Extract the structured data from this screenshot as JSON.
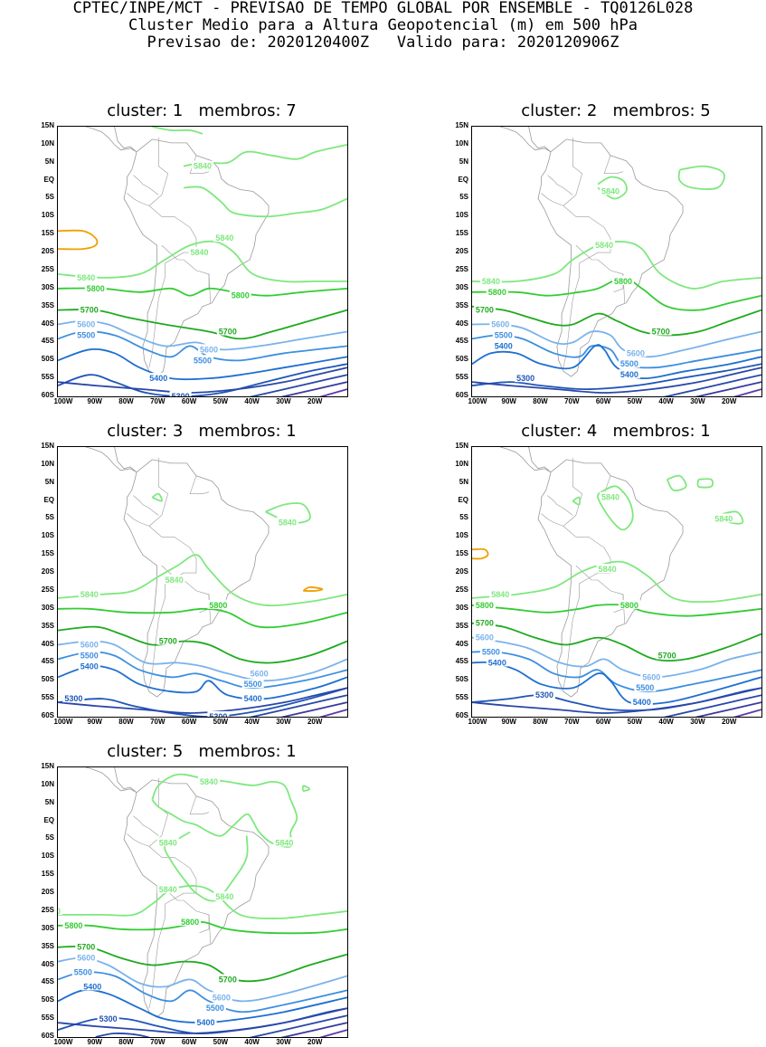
{
  "header": {
    "line1": "CPTEC/INPE/MCT - PREVISAO DE TEMPO GLOBAL POR ENSEMBLE - TQ0126L028",
    "line2": "Cluster Medio para a Altura Geopotencial (m) em 500 hPa",
    "line3": "Previsao de: 2020120400Z   Valido para: 2020120906Z"
  },
  "axes": {
    "lat_ticks": [
      "15N",
      "10N",
      "5N",
      "EQ",
      "5S",
      "10S",
      "15S",
      "20S",
      "25S",
      "30S",
      "35S",
      "40S",
      "45S",
      "50S",
      "55S",
      "60S"
    ],
    "lon_ticks": [
      "100W",
      "90W",
      "80W",
      "70W",
      "60W",
      "50W",
      "40W",
      "30W",
      "20W"
    ]
  },
  "colors": {
    "c5840": "#7ee87e",
    "c5800": "#33cc33",
    "c5700": "#1faa1f",
    "c5600": "#7ab2ec",
    "c5500": "#3d8fe0",
    "c5400": "#1e6fd0",
    "c5300": "#1f55b8",
    "deep1": "#2a47a8",
    "deep2": "#3a3aa0",
    "deep3": "#5a3aa8",
    "warm": "#f0a000",
    "coast": "#9a9a9a"
  },
  "panels": [
    {
      "title": "cluster: 1   membros: 7",
      "labels": [
        {
          "text": "5840",
          "lon": -56,
          "lat": 4
        },
        {
          "text": "5840",
          "lon": -49,
          "lat": -16
        },
        {
          "text": "5840",
          "lon": -57,
          "lat": -20
        },
        {
          "text": "5840",
          "lon": -93,
          "lat": -27
        },
        {
          "text": "5800",
          "lon": -90,
          "lat": -30
        },
        {
          "text": "5800",
          "lon": -44,
          "lat": -32
        },
        {
          "text": "5700",
          "lon": -92,
          "lat": -36
        },
        {
          "text": "5700",
          "lon": -48,
          "lat": -42
        },
        {
          "text": "5600",
          "lon": -93,
          "lat": -40
        },
        {
          "text": "5600",
          "lon": -54,
          "lat": -47
        },
        {
          "text": "5500",
          "lon": -93,
          "lat": -43
        },
        {
          "text": "5500",
          "lon": -56,
          "lat": -50
        },
        {
          "text": "5400",
          "lon": -70,
          "lat": -55
        },
        {
          "text": "5300",
          "lon": -63,
          "lat": -60
        }
      ]
    },
    {
      "title": "cluster: 2   membros: 5",
      "labels": [
        {
          "text": "5840",
          "lon": -58,
          "lat": -3
        },
        {
          "text": "5840",
          "lon": -60,
          "lat": -18
        },
        {
          "text": "5840",
          "lon": -96,
          "lat": -28
        },
        {
          "text": "5800",
          "lon": -94,
          "lat": -31
        },
        {
          "text": "5800",
          "lon": -54,
          "lat": -28
        },
        {
          "text": "5700",
          "lon": -98,
          "lat": -36
        },
        {
          "text": "5700",
          "lon": -42,
          "lat": -42
        },
        {
          "text": "5600",
          "lon": -93,
          "lat": -40
        },
        {
          "text": "5600",
          "lon": -50,
          "lat": -48
        },
        {
          "text": "5500",
          "lon": -92,
          "lat": -43
        },
        {
          "text": "5500",
          "lon": -52,
          "lat": -51
        },
        {
          "text": "5400",
          "lon": -92,
          "lat": -46
        },
        {
          "text": "5400",
          "lon": -52,
          "lat": -54
        },
        {
          "text": "5300",
          "lon": -85,
          "lat": -55
        }
      ]
    },
    {
      "title": "cluster: 3   membros: 1",
      "labels": [
        {
          "text": "5840",
          "lon": -29,
          "lat": -6
        },
        {
          "text": "5840",
          "lon": -65,
          "lat": -22
        },
        {
          "text": "5840",
          "lon": -92,
          "lat": -26
        },
        {
          "text": "5800",
          "lon": -51,
          "lat": -29
        },
        {
          "text": "5700",
          "lon": -67,
          "lat": -39
        },
        {
          "text": "5600",
          "lon": -92,
          "lat": -40
        },
        {
          "text": "5600",
          "lon": -38,
          "lat": -48
        },
        {
          "text": "5500",
          "lon": -92,
          "lat": -43
        },
        {
          "text": "5500",
          "lon": -40,
          "lat": -51
        },
        {
          "text": "5400",
          "lon": -92,
          "lat": -46
        },
        {
          "text": "5400",
          "lon": -40,
          "lat": -55
        },
        {
          "text": "5300",
          "lon": -97,
          "lat": -55
        },
        {
          "text": "5300",
          "lon": -51,
          "lat": -60
        }
      ]
    },
    {
      "title": "cluster: 4   membros: 1",
      "labels": [
        {
          "text": "5840",
          "lon": -58,
          "lat": 1
        },
        {
          "text": "5840",
          "lon": -22,
          "lat": -5
        },
        {
          "text": "5840",
          "lon": -59,
          "lat": -19
        },
        {
          "text": "5840",
          "lon": -93,
          "lat": -26
        },
        {
          "text": "5800",
          "lon": -98,
          "lat": -29
        },
        {
          "text": "5800",
          "lon": -52,
          "lat": -29
        },
        {
          "text": "5700",
          "lon": -98,
          "lat": -34
        },
        {
          "text": "5700",
          "lon": -40,
          "lat": -43
        },
        {
          "text": "5600",
          "lon": -98,
          "lat": -38
        },
        {
          "text": "5600",
          "lon": -45,
          "lat": -49
        },
        {
          "text": "5500",
          "lon": -96,
          "lat": -42
        },
        {
          "text": "5500",
          "lon": -47,
          "lat": -52
        },
        {
          "text": "5400",
          "lon": -94,
          "lat": -45
        },
        {
          "text": "5400",
          "lon": -48,
          "lat": -56
        },
        {
          "text": "5300",
          "lon": -79,
          "lat": -54
        }
      ]
    },
    {
      "title": "cluster: 5   membros: 1",
      "labels": [
        {
          "text": "5840",
          "lon": -54,
          "lat": 11
        },
        {
          "text": "5840",
          "lon": -30,
          "lat": -6
        },
        {
          "text": "5840",
          "lon": -67,
          "lat": -6
        },
        {
          "text": "5840",
          "lon": -67,
          "lat": -19
        },
        {
          "text": "5840",
          "lon": -49,
          "lat": -21
        },
        {
          "text": "5840",
          "lon": -104,
          "lat": -25
        },
        {
          "text": "5800",
          "lon": -97,
          "lat": -29
        },
        {
          "text": "5800",
          "lon": -60,
          "lat": -28
        },
        {
          "text": "5700",
          "lon": -93,
          "lat": -35
        },
        {
          "text": "5700",
          "lon": -48,
          "lat": -44
        },
        {
          "text": "5600",
          "lon": -93,
          "lat": -38
        },
        {
          "text": "5600",
          "lon": -50,
          "lat": -49
        },
        {
          "text": "5500",
          "lon": -94,
          "lat": -42
        },
        {
          "text": "5500",
          "lon": -52,
          "lat": -52
        },
        {
          "text": "5400",
          "lon": -91,
          "lat": -46
        },
        {
          "text": "5400",
          "lon": -55,
          "lat": -56
        },
        {
          "text": "5300",
          "lon": -86,
          "lat": -55
        }
      ]
    }
  ]
}
